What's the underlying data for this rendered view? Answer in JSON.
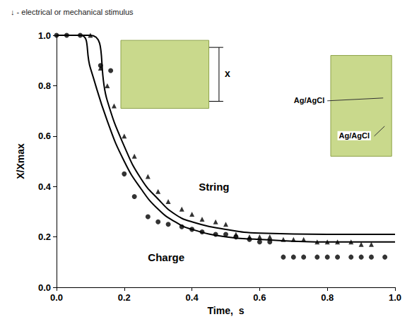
{
  "chart_data": {
    "type": "scatter",
    "title": "↓ - electrical or mechanical stimulus",
    "x_label": "Time,  s",
    "y_label": "X/Xmax",
    "xlim": [
      0,
      1
    ],
    "ylim": [
      0,
      1
    ],
    "xticks": [
      {
        "value": 0,
        "label": "0.0"
      },
      {
        "value": 0.2,
        "label": "0.2"
      },
      {
        "value": 0.4,
        "label": "0.4"
      },
      {
        "value": 0.6,
        "label": "0.6"
      },
      {
        "value": 0.8,
        "label": "0.8"
      },
      {
        "value": 1,
        "label": "1.0"
      }
    ],
    "yticks": [
      {
        "value": 0,
        "label": "0.0"
      },
      {
        "value": 0.2,
        "label": "0.2"
      },
      {
        "value": 0.4,
        "label": "0.4"
      },
      {
        "value": 0.6,
        "label": "0.6"
      },
      {
        "value": 0.8,
        "label": "0.8"
      },
      {
        "value": 1,
        "label": "1.0"
      }
    ],
    "grid": false,
    "series": [
      {
        "name": "String",
        "color": "#000000",
        "marker": "triangle",
        "line_style": "solid",
        "x": [
          0.1,
          0.13,
          0.15,
          0.17,
          0.2,
          0.23,
          0.27,
          0.3,
          0.33,
          0.37,
          0.4,
          0.43,
          0.47,
          0.5,
          0.53,
          0.57,
          0.6,
          0.63,
          0.67,
          0.7,
          0.73,
          0.77,
          0.8,
          0.83,
          0.87,
          0.9,
          0.93
        ],
        "values": [
          1.0,
          0.87,
          0.8,
          0.72,
          0.6,
          0.52,
          0.44,
          0.38,
          0.34,
          0.31,
          0.29,
          0.27,
          0.26,
          0.25,
          0.21,
          0.2,
          0.2,
          0.2,
          0.19,
          0.19,
          0.19,
          0.18,
          0.18,
          0.18,
          0.18,
          0.17,
          0.17
        ],
        "fit": {
          "x": [
            0,
            0.1,
            0.15,
            0.2,
            0.25,
            0.3,
            0.35,
            0.4,
            0.5,
            0.6,
            0.8,
            1.0
          ],
          "values": [
            1.0,
            1.0,
            0.74,
            0.56,
            0.43,
            0.35,
            0.29,
            0.26,
            0.23,
            0.215,
            0.21,
            0.21
          ]
        }
      },
      {
        "name": "Charge",
        "color": "#000000",
        "marker": "circle",
        "line_style": "solid",
        "x": [
          0.0,
          0.03,
          0.07,
          0.13,
          0.16,
          0.2,
          0.23,
          0.27,
          0.3,
          0.33,
          0.37,
          0.4,
          0.43,
          0.47,
          0.5,
          0.53,
          0.57,
          0.6,
          0.63,
          0.67,
          0.7,
          0.73,
          0.77,
          0.8,
          0.83,
          0.87,
          0.9,
          0.93,
          0.97
        ],
        "values": [
          1.0,
          1.0,
          1.0,
          0.88,
          0.86,
          0.45,
          0.36,
          0.28,
          0.26,
          0.25,
          0.24,
          0.23,
          0.22,
          0.21,
          0.21,
          0.2,
          0.19,
          0.18,
          0.18,
          0.12,
          0.12,
          0.12,
          0.12,
          0.12,
          0.12,
          0.12,
          0.12,
          0.12,
          0.12
        ],
        "fit": {
          "x": [
            0,
            0.07,
            0.1,
            0.15,
            0.2,
            0.25,
            0.3,
            0.35,
            0.4,
            0.5,
            0.6,
            0.8,
            1.0
          ],
          "values": [
            1.0,
            1.0,
            0.87,
            0.66,
            0.5,
            0.39,
            0.31,
            0.26,
            0.23,
            0.2,
            0.19,
            0.18,
            0.18
          ]
        }
      }
    ],
    "annotations": [
      "x",
      "Ag/AgCl",
      "Ag/AgCl"
    ]
  }
}
